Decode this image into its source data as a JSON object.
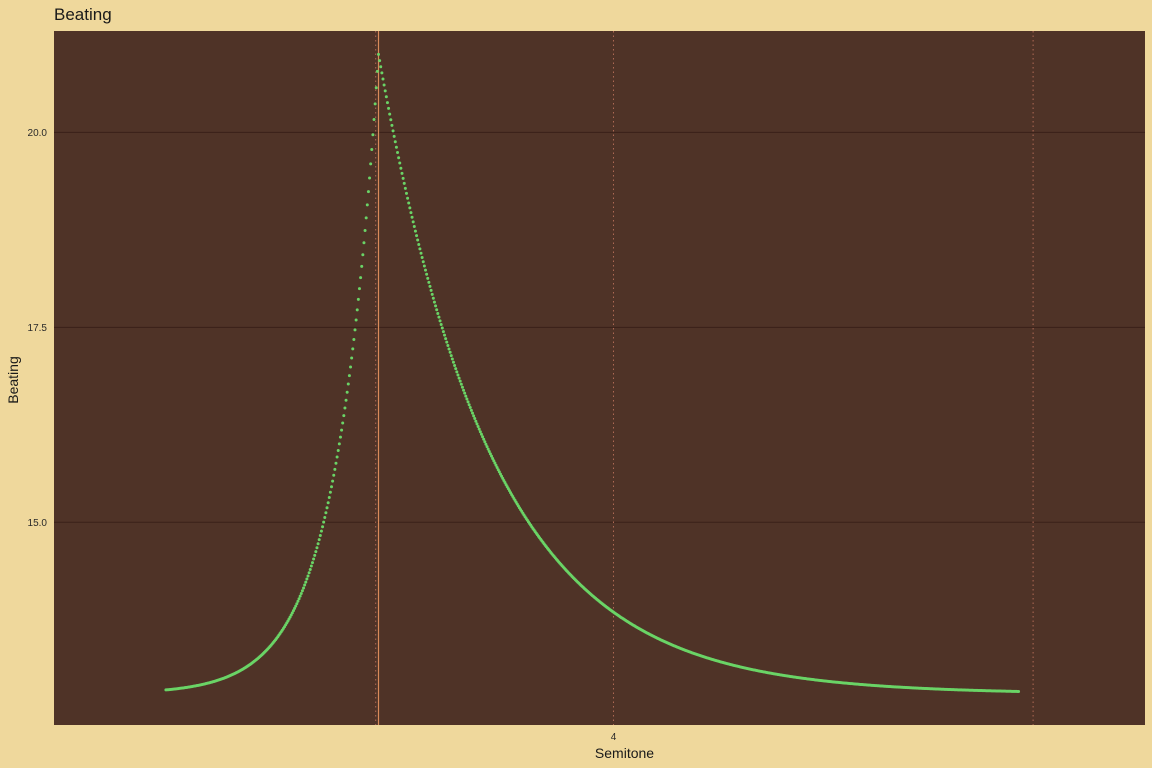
{
  "chart_data": {
    "type": "scatter",
    "title": "Beating",
    "xlabel": "Semitone",
    "ylabel": "Beating",
    "xlim": [
      2.0,
      5.9
    ],
    "ylim": [
      12.4,
      21.3
    ],
    "x_ticks": [
      {
        "value": 4,
        "label": "4"
      }
    ],
    "y_ticks": [
      {
        "value": 15.0,
        "label": "15.0"
      },
      {
        "value": 17.5,
        "label": "17.5"
      },
      {
        "value": 20.0,
        "label": "20.0"
      }
    ],
    "grid": true,
    "reference_lines": {
      "dotted_x": [
        3.15,
        4.0,
        5.5
      ],
      "solid_x": [
        3.16
      ]
    },
    "series": [
      {
        "model": "peak",
        "x_start": 2.4,
        "x_end": 5.45,
        "x_step": 0.004,
        "peak_x": 3.16,
        "peak_y": 21.0,
        "baseline": 12.8,
        "tail_y_left": 12.85,
        "tail_y_right": 12.83
      }
    ],
    "colors": {
      "page_background": "#efd89c",
      "panel_background": "#4f3327",
      "grid": "#3a2118",
      "points": "#6ad466",
      "dotted_line": "#b06a55",
      "solid_line": "#d98b5a"
    }
  }
}
